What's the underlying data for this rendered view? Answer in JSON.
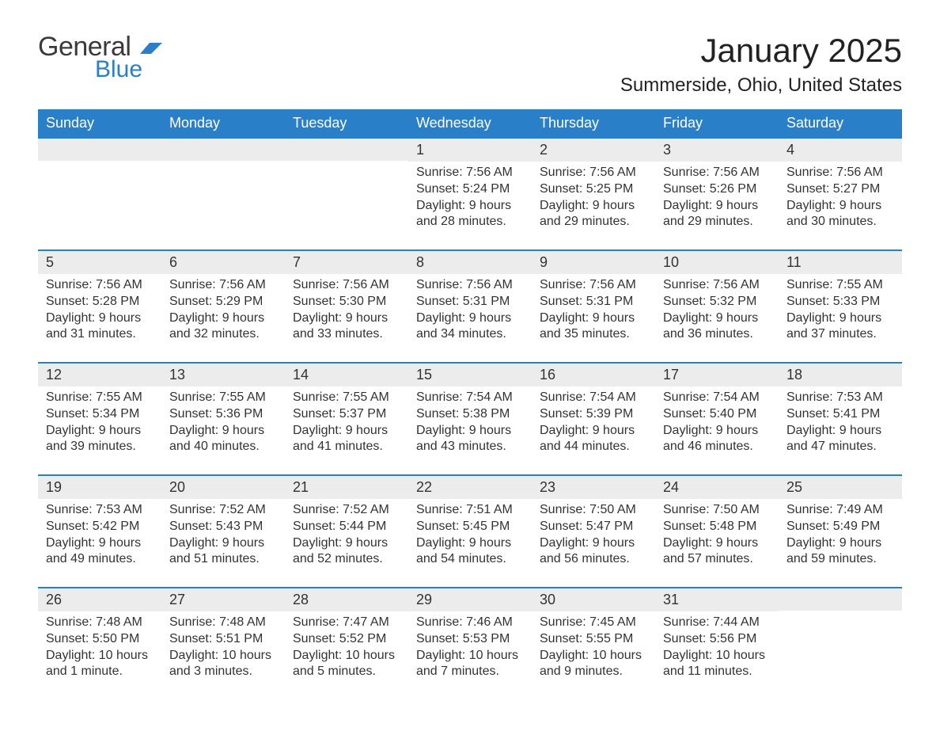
{
  "logo": {
    "word1": "General",
    "word2": "Blue",
    "flag_color": "#2a7fc9"
  },
  "title": "January 2025",
  "subtitle": "Summerside, Ohio, United States",
  "colors": {
    "header_bg": "#2a7fc9",
    "header_text": "#ffffff",
    "daynum_bg": "#ececec",
    "cell_border": "#2a7fc9",
    "body_text": "#333333",
    "background": "#ffffff"
  },
  "day_headers": [
    "Sunday",
    "Monday",
    "Tuesday",
    "Wednesday",
    "Thursday",
    "Friday",
    "Saturday"
  ],
  "leading_blanks": 3,
  "trailing_blanks": 1,
  "day_field_labels": {
    "sunrise": "Sunrise:",
    "sunset": "Sunset:",
    "daylight": "Daylight:"
  },
  "days": [
    {
      "num": "1",
      "sunrise": "7:56 AM",
      "sunset": "5:24 PM",
      "daylight": "9 hours and 28 minutes."
    },
    {
      "num": "2",
      "sunrise": "7:56 AM",
      "sunset": "5:25 PM",
      "daylight": "9 hours and 29 minutes."
    },
    {
      "num": "3",
      "sunrise": "7:56 AM",
      "sunset": "5:26 PM",
      "daylight": "9 hours and 29 minutes."
    },
    {
      "num": "4",
      "sunrise": "7:56 AM",
      "sunset": "5:27 PM",
      "daylight": "9 hours and 30 minutes."
    },
    {
      "num": "5",
      "sunrise": "7:56 AM",
      "sunset": "5:28 PM",
      "daylight": "9 hours and 31 minutes."
    },
    {
      "num": "6",
      "sunrise": "7:56 AM",
      "sunset": "5:29 PM",
      "daylight": "9 hours and 32 minutes."
    },
    {
      "num": "7",
      "sunrise": "7:56 AM",
      "sunset": "5:30 PM",
      "daylight": "9 hours and 33 minutes."
    },
    {
      "num": "8",
      "sunrise": "7:56 AM",
      "sunset": "5:31 PM",
      "daylight": "9 hours and 34 minutes."
    },
    {
      "num": "9",
      "sunrise": "7:56 AM",
      "sunset": "5:31 PM",
      "daylight": "9 hours and 35 minutes."
    },
    {
      "num": "10",
      "sunrise": "7:56 AM",
      "sunset": "5:32 PM",
      "daylight": "9 hours and 36 minutes."
    },
    {
      "num": "11",
      "sunrise": "7:55 AM",
      "sunset": "5:33 PM",
      "daylight": "9 hours and 37 minutes."
    },
    {
      "num": "12",
      "sunrise": "7:55 AM",
      "sunset": "5:34 PM",
      "daylight": "9 hours and 39 minutes."
    },
    {
      "num": "13",
      "sunrise": "7:55 AM",
      "sunset": "5:36 PM",
      "daylight": "9 hours and 40 minutes."
    },
    {
      "num": "14",
      "sunrise": "7:55 AM",
      "sunset": "5:37 PM",
      "daylight": "9 hours and 41 minutes."
    },
    {
      "num": "15",
      "sunrise": "7:54 AM",
      "sunset": "5:38 PM",
      "daylight": "9 hours and 43 minutes."
    },
    {
      "num": "16",
      "sunrise": "7:54 AM",
      "sunset": "5:39 PM",
      "daylight": "9 hours and 44 minutes."
    },
    {
      "num": "17",
      "sunrise": "7:54 AM",
      "sunset": "5:40 PM",
      "daylight": "9 hours and 46 minutes."
    },
    {
      "num": "18",
      "sunrise": "7:53 AM",
      "sunset": "5:41 PM",
      "daylight": "9 hours and 47 minutes."
    },
    {
      "num": "19",
      "sunrise": "7:53 AM",
      "sunset": "5:42 PM",
      "daylight": "9 hours and 49 minutes."
    },
    {
      "num": "20",
      "sunrise": "7:52 AM",
      "sunset": "5:43 PM",
      "daylight": "9 hours and 51 minutes."
    },
    {
      "num": "21",
      "sunrise": "7:52 AM",
      "sunset": "5:44 PM",
      "daylight": "9 hours and 52 minutes."
    },
    {
      "num": "22",
      "sunrise": "7:51 AM",
      "sunset": "5:45 PM",
      "daylight": "9 hours and 54 minutes."
    },
    {
      "num": "23",
      "sunrise": "7:50 AM",
      "sunset": "5:47 PM",
      "daylight": "9 hours and 56 minutes."
    },
    {
      "num": "24",
      "sunrise": "7:50 AM",
      "sunset": "5:48 PM",
      "daylight": "9 hours and 57 minutes."
    },
    {
      "num": "25",
      "sunrise": "7:49 AM",
      "sunset": "5:49 PM",
      "daylight": "9 hours and 59 minutes."
    },
    {
      "num": "26",
      "sunrise": "7:48 AM",
      "sunset": "5:50 PM",
      "daylight": "10 hours and 1 minute."
    },
    {
      "num": "27",
      "sunrise": "7:48 AM",
      "sunset": "5:51 PM",
      "daylight": "10 hours and 3 minutes."
    },
    {
      "num": "28",
      "sunrise": "7:47 AM",
      "sunset": "5:52 PM",
      "daylight": "10 hours and 5 minutes."
    },
    {
      "num": "29",
      "sunrise": "7:46 AM",
      "sunset": "5:53 PM",
      "daylight": "10 hours and 7 minutes."
    },
    {
      "num": "30",
      "sunrise": "7:45 AM",
      "sunset": "5:55 PM",
      "daylight": "10 hours and 9 minutes."
    },
    {
      "num": "31",
      "sunrise": "7:44 AM",
      "sunset": "5:56 PM",
      "daylight": "10 hours and 11 minutes."
    }
  ]
}
